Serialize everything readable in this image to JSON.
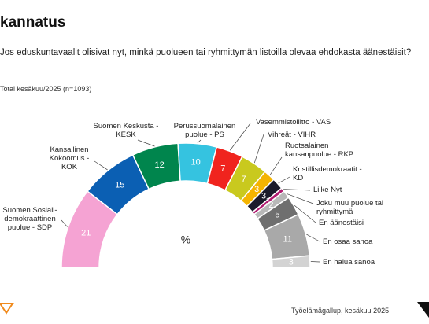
{
  "chart_data": {
    "type": "half-donut",
    "title": "kannatus",
    "subtitle": "Jos eduskuntavaalit olisivat nyt, minkä puolueen tai ryhmittymän listoilla olevaa ehdokasta äänestäisit?",
    "note": "Total kesäkuu/2025 (n=1093)",
    "center_label": "%",
    "source": "Työelämägallup, kesäkuu 2025",
    "categories": [
      "Suomen Sosiali-\ndemokraattinen\npuolue - SDP",
      "Kansallinen\nKokoomus - KOK",
      "Suomen Keskusta -\nKESK",
      "Perussuomalainen\npuolue - PS",
      "Vasemmistoliitto - VAS",
      "Vihreät - VIHR",
      "Ruotsalainen\nkansanpuolue - RKP",
      "Kristillisdemokraatit -\nKD",
      "Liike Nyt",
      "Joku muu puolue tai\nryhmittymä",
      "En äänestäisi",
      "En osaa sanoa",
      "En halua sanoa"
    ],
    "values": [
      21,
      15,
      12,
      10,
      7,
      7,
      3,
      3,
      1,
      2,
      5,
      11,
      3
    ],
    "colors": [
      "#f5a3d3",
      "#0b5fb3",
      "#00854d",
      "#35c3e0",
      "#f0241e",
      "#c9c91e",
      "#f4b400",
      "#1b1b2b",
      "#b0196f",
      "#b8b8b8",
      "#6f6f6f",
      "#a9a9a9",
      "#d3d3d3"
    ]
  }
}
